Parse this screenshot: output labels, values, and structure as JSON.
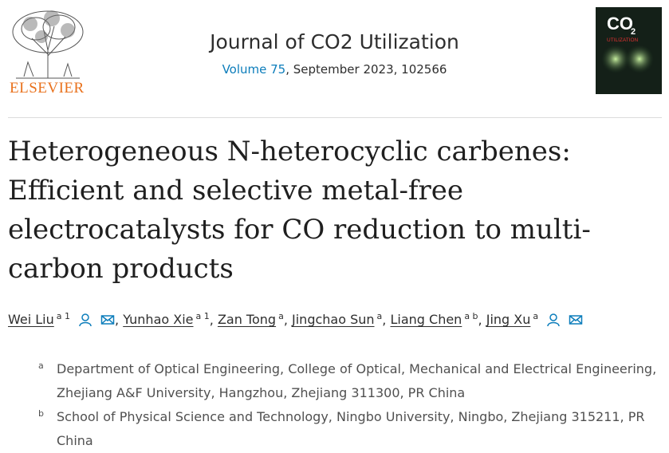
{
  "header": {
    "publisher": "ELSEVIER",
    "journal": "Journal of CO2 Utilization",
    "volume": "Volume 75",
    "issue_info": ", September 2023, 102566",
    "cover": {
      "main": "CO",
      "sub": "2",
      "caption": "UTILIZATION"
    }
  },
  "article": {
    "title": "Heterogeneous N-heterocyclic carbenes: Efficient and selective metal-free electrocatalysts for CO reduction to multi-carbon products",
    "separator": ",",
    "authors": [
      {
        "name": "Wei Liu",
        "sup": "a 1"
      },
      {
        "name": "Yunhao Xie",
        "sup": "a 1"
      },
      {
        "name": "Zan Tong",
        "sup": "a"
      },
      {
        "name": "Jingchao Sun",
        "sup": "a"
      },
      {
        "name": "Liang Chen",
        "sup": "a b"
      },
      {
        "name": "Jing Xu",
        "sup": "a"
      }
    ],
    "affiliations": [
      {
        "label": "a",
        "text": "Department of Optical Engineering, College of Optical, Mechanical and Electrical Engineering, Zhejiang A&F University, Hangzhou, Zhejiang 311300, PR China"
      },
      {
        "label": "b",
        "text": "School of Physical Science and Technology, Ningbo University, Ningbo, Zhejiang 315211, PR China"
      }
    ]
  }
}
